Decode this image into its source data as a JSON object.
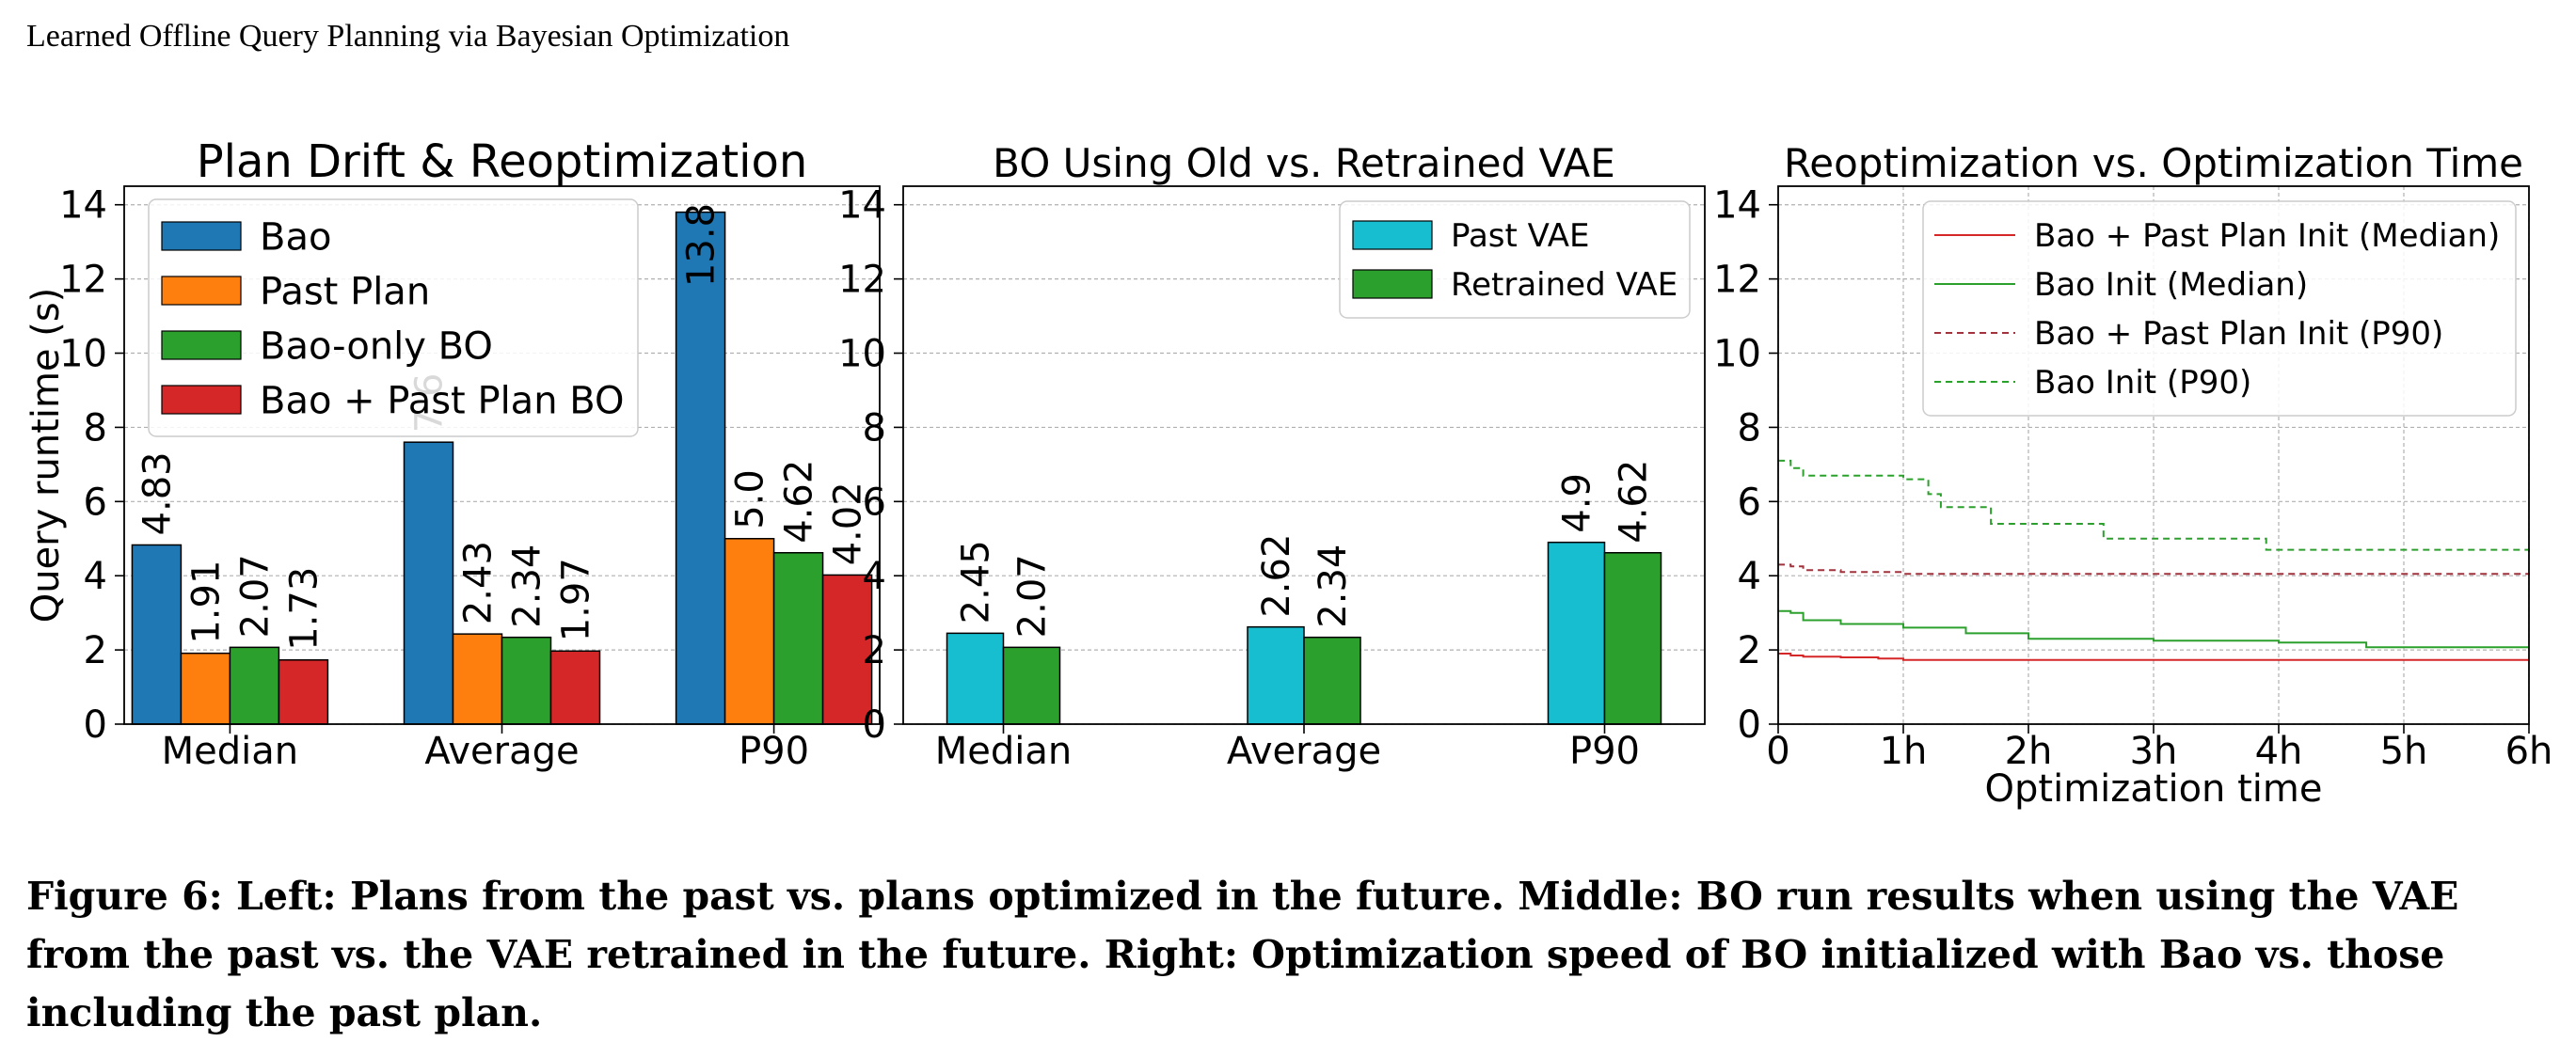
{
  "page": {
    "running_title": "Learned Offline Query Planning via Bayesian Optimization",
    "caption": "Figure 6: Left: Plans from the past vs. plans optimized in the future. Middle: BO run results when using the VAE from the past vs. the VAE retrained in the future. Right: Optimization speed of BO initialized with Bao vs. those including the past plan."
  },
  "colors": {
    "blue": "#1f77b4",
    "orange": "#ff7f0e",
    "green": "#2ca02c",
    "red": "#d62728",
    "cyan": "#17becf",
    "darkred": "#a0343e"
  },
  "chart_data": [
    {
      "type": "bar",
      "title": "Plan Drift & Reoptimization",
      "ylabel": "Query runtime (s)",
      "xlabel": "",
      "categories": [
        "Median",
        "Average",
        "P90"
      ],
      "ylim": [
        0,
        14.5
      ],
      "yticks": [
        0,
        2,
        4,
        6,
        8,
        10,
        12,
        14
      ],
      "grid": true,
      "legend": "top-left",
      "series": [
        {
          "name": "Bao",
          "values": [
            4.83,
            7.6,
            13.8
          ],
          "labels": [
            "4.83",
            "7.6",
            "13.8"
          ],
          "color": "#1f77b4"
        },
        {
          "name": "Past Plan",
          "values": [
            1.91,
            2.43,
            5.0
          ],
          "labels": [
            "1.91",
            "2.43",
            "5.0"
          ],
          "color": "#ff7f0e"
        },
        {
          "name": "Bao-only BO",
          "values": [
            2.07,
            2.34,
            4.62
          ],
          "labels": [
            "2.07",
            "2.34",
            "4.62"
          ],
          "color": "#2ca02c"
        },
        {
          "name": "Bao + Past Plan BO",
          "values": [
            1.73,
            1.97,
            4.02
          ],
          "labels": [
            "1.73",
            "1.97",
            "4.02"
          ],
          "color": "#d62728"
        }
      ]
    },
    {
      "type": "bar",
      "title": "BO Using Old vs. Retrained VAE",
      "ylabel": "",
      "xlabel": "",
      "categories": [
        "Median",
        "Average",
        "P90"
      ],
      "ylim": [
        0,
        14.5
      ],
      "yticks": [
        0,
        2,
        4,
        6,
        8,
        10,
        12,
        14
      ],
      "grid": true,
      "legend": "top-right",
      "series": [
        {
          "name": "Past VAE",
          "values": [
            2.45,
            2.62,
            4.9
          ],
          "labels": [
            "2.45",
            "2.62",
            "4.9"
          ],
          "color": "#17becf"
        },
        {
          "name": "Retrained VAE",
          "values": [
            2.07,
            2.34,
            4.62
          ],
          "labels": [
            "2.07",
            "2.34",
            "4.62"
          ],
          "color": "#2ca02c"
        }
      ]
    },
    {
      "type": "line",
      "title": "Reoptimization vs. Optimization Time",
      "ylabel": "",
      "xlabel": "Optimization time",
      "xlim": [
        0,
        6
      ],
      "xticks": [
        0,
        1,
        2,
        3,
        4,
        5,
        6
      ],
      "xticklabels": [
        "0",
        "1h",
        "2h",
        "3h",
        "4h",
        "5h",
        "6h"
      ],
      "ylim": [
        0,
        14.5
      ],
      "yticks": [
        0,
        2,
        4,
        6,
        8,
        10,
        12,
        14
      ],
      "grid": true,
      "legend": "top-right",
      "series": [
        {
          "name": "Bao + Past Plan Init (Median)",
          "color": "#d62728",
          "dash": false,
          "x": [
            0.0,
            0.1,
            0.2,
            0.5,
            0.8,
            1.0,
            6.0
          ],
          "y": [
            1.9,
            1.85,
            1.82,
            1.8,
            1.77,
            1.73,
            1.73
          ]
        },
        {
          "name": "Bao Init (Median)",
          "color": "#2ca02c",
          "dash": false,
          "x": [
            0.0,
            0.1,
            0.2,
            0.5,
            1.0,
            1.5,
            2.0,
            3.0,
            4.0,
            4.7,
            6.0
          ],
          "y": [
            3.05,
            3.0,
            2.8,
            2.7,
            2.6,
            2.45,
            2.3,
            2.25,
            2.2,
            2.07,
            2.07
          ]
        },
        {
          "name": "Bao + Past Plan Init (P90)",
          "color": "#a0343e",
          "dash": true,
          "x": [
            0.0,
            0.1,
            0.2,
            0.5,
            1.0,
            6.0
          ],
          "y": [
            4.3,
            4.25,
            4.15,
            4.1,
            4.05,
            4.02
          ]
        },
        {
          "name": "Bao Init (P90)",
          "color": "#2ca02c",
          "dash": true,
          "x": [
            0.0,
            0.1,
            0.2,
            0.5,
            1.0,
            1.2,
            1.3,
            1.6,
            1.7,
            2.5,
            2.6,
            3.8,
            3.9,
            6.0
          ],
          "y": [
            7.1,
            6.9,
            6.7,
            6.7,
            6.6,
            6.2,
            5.85,
            5.85,
            5.4,
            5.4,
            5.0,
            5.0,
            4.7,
            4.62
          ]
        }
      ]
    }
  ]
}
